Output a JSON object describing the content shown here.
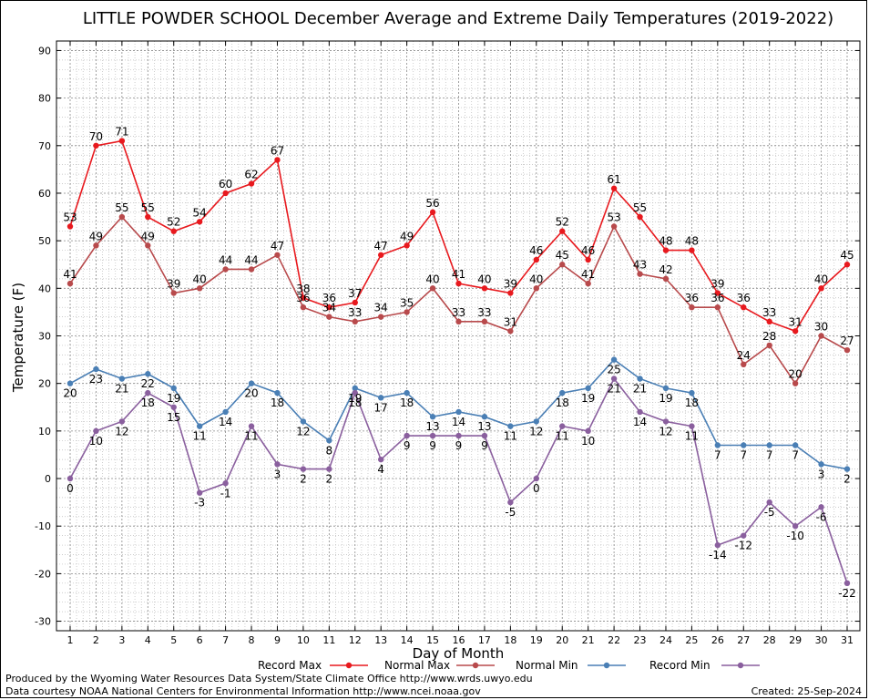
{
  "chart_data": {
    "type": "line",
    "title": "LITTLE POWDER SCHOOL December Average and Extreme Daily Temperatures (2019-2022)",
    "xlabel": "Day of Month",
    "ylabel": "Temperature (F)",
    "ylim": [
      -32,
      92
    ],
    "yticks": [
      -30,
      -20,
      -10,
      0,
      10,
      20,
      30,
      40,
      50,
      60,
      70,
      80,
      90
    ],
    "x": [
      1,
      2,
      3,
      4,
      5,
      6,
      7,
      8,
      9,
      10,
      11,
      12,
      13,
      14,
      15,
      16,
      17,
      18,
      19,
      20,
      21,
      22,
      23,
      24,
      25,
      26,
      27,
      28,
      29,
      30,
      31
    ],
    "grid": true,
    "legend_position": "bottom",
    "series": [
      {
        "name": "Record Max",
        "color": "#e8191e",
        "values": [
          53,
          70,
          71,
          55,
          52,
          54,
          60,
          62,
          67,
          38,
          36,
          37,
          47,
          49,
          56,
          41,
          40,
          39,
          46,
          52,
          46,
          61,
          55,
          48,
          48,
          39,
          36,
          33,
          31,
          40,
          45
        ]
      },
      {
        "name": "Normal Max",
        "color": "#b84a4c",
        "values": [
          41,
          49,
          55,
          49,
          39,
          40,
          44,
          44,
          47,
          36,
          34,
          33,
          34,
          35,
          40,
          33,
          33,
          31,
          40,
          45,
          41,
          53,
          43,
          42,
          36,
          36,
          24,
          28,
          20,
          30,
          27
        ]
      },
      {
        "name": "Normal Min",
        "color": "#4a7fb5",
        "values": [
          20,
          23,
          21,
          22,
          19,
          11,
          14,
          20,
          18,
          12,
          8,
          19,
          17,
          18,
          13,
          14,
          13,
          11,
          12,
          18,
          19,
          25,
          21,
          19,
          18,
          7,
          7,
          7,
          7,
          3,
          2
        ]
      },
      {
        "name": "Record Min",
        "color": "#8a5f9e",
        "values": [
          0,
          10,
          12,
          18,
          15,
          -3,
          -1,
          11,
          3,
          2,
          2,
          18,
          4,
          9,
          9,
          9,
          9,
          -5,
          0,
          11,
          10,
          21,
          14,
          12,
          11,
          -14,
          -12,
          -5,
          -10,
          -6,
          -22
        ]
      }
    ]
  },
  "footer": {
    "produced_by": "Produced by the Wyoming Water Resources Data System/State Climate Office http://www.wrds.uwyo.edu",
    "courtesy": "Data courtesy NOAA National Centers for Environmental Information http://www.ncei.noaa.gov",
    "created": "Created: 25-Sep-2024"
  }
}
